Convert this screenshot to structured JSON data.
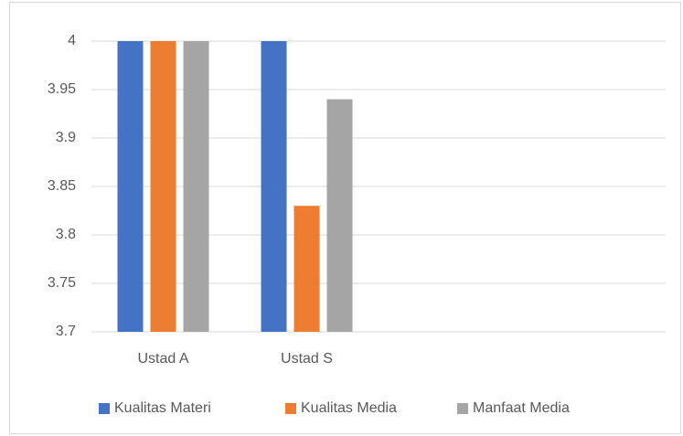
{
  "chart_data": {
    "type": "bar",
    "categories": [
      "Ustad A",
      "Ustad S",
      null,
      null
    ],
    "series": [
      {
        "name": "Kualitas Materi",
        "color": "#4472c4",
        "values": [
          4,
          4,
          null,
          null
        ]
      },
      {
        "name": "Kualitas Media",
        "color": "#ed7d31",
        "values": [
          4,
          3.83,
          null,
          null
        ]
      },
      {
        "name": "Manfaat Media",
        "color": "#a5a5a5",
        "values": [
          4,
          3.94,
          null,
          null
        ]
      }
    ],
    "ylim": [
      3.7,
      4
    ],
    "yticks": [
      3.7,
      3.75,
      3.8,
      3.85,
      3.9,
      3.95,
      4
    ],
    "grid": true,
    "legend": "bottom"
  }
}
